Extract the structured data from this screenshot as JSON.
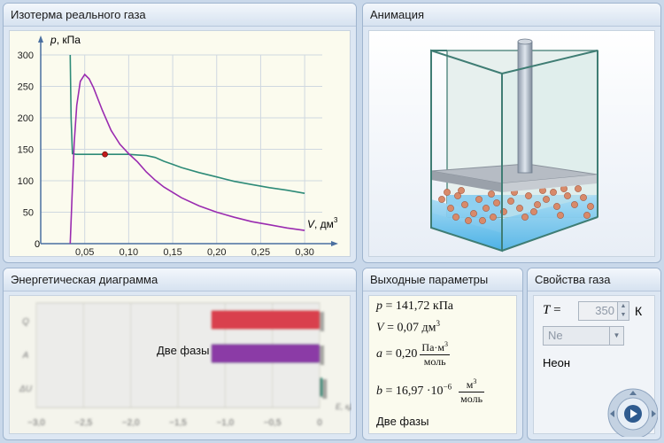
{
  "panels": {
    "isotherm": "Изотерма реального газа",
    "animation": "Анимация",
    "energy": "Энергетическая диаграмма",
    "output": "Выходные параметры",
    "props": "Свойства газа"
  },
  "chart_data": {
    "type": "line",
    "ylabel_var": "p",
    "ylabel_unit": ", кПа",
    "xlabel_var": "V",
    "xlabel_unit": ", дм",
    "xlabel_sup": "3",
    "x_ticks": [
      "0,05",
      "0,10",
      "0,15",
      "0,20",
      "0,25",
      "0,30"
    ],
    "y_ticks": [
      "50",
      "100",
      "150",
      "200",
      "250",
      "300"
    ],
    "origin_label": "0",
    "xlim": [
      0,
      0.32
    ],
    "ylim": [
      0,
      300
    ],
    "series": [
      {
        "color": "#2e8b78",
        "values": [
          [
            0.0335,
            300
          ],
          [
            0.0345,
            200
          ],
          [
            0.036,
            143
          ],
          [
            0.04,
            142
          ],
          [
            0.05,
            142
          ],
          [
            0.06,
            142
          ],
          [
            0.07,
            142
          ],
          [
            0.08,
            142
          ],
          [
            0.09,
            142
          ],
          [
            0.1,
            142
          ],
          [
            0.11,
            141
          ],
          [
            0.12,
            140
          ],
          [
            0.13,
            137
          ],
          [
            0.14,
            131
          ],
          [
            0.15,
            126
          ],
          [
            0.16,
            121
          ],
          [
            0.18,
            113
          ],
          [
            0.2,
            106
          ],
          [
            0.22,
            99
          ],
          [
            0.24,
            94
          ],
          [
            0.26,
            89
          ],
          [
            0.28,
            85
          ],
          [
            0.3,
            80
          ]
        ]
      },
      {
        "color": "#9a2bb0",
        "values": [
          [
            0.0335,
            0
          ],
          [
            0.036,
            90
          ],
          [
            0.038,
            160
          ],
          [
            0.041,
            220
          ],
          [
            0.045,
            258
          ],
          [
            0.05,
            269
          ],
          [
            0.055,
            262
          ],
          [
            0.06,
            248
          ],
          [
            0.07,
            212
          ],
          [
            0.08,
            180
          ],
          [
            0.09,
            158
          ],
          [
            0.1,
            143
          ],
          [
            0.11,
            130
          ],
          [
            0.12,
            114
          ],
          [
            0.13,
            101
          ],
          [
            0.14,
            90
          ],
          [
            0.16,
            73
          ],
          [
            0.18,
            60
          ],
          [
            0.2,
            50
          ],
          [
            0.22,
            42
          ],
          [
            0.24,
            35
          ],
          [
            0.26,
            30
          ],
          [
            0.28,
            25
          ],
          [
            0.3,
            21
          ]
        ]
      }
    ],
    "marker": {
      "x": 0.073,
      "y": 142,
      "color": "#c21a1a"
    }
  },
  "energy": {
    "rows": [
      "Q",
      "A",
      "ΔU"
    ],
    "x_ticks": [
      "−3,0",
      "−2,5",
      "−2,0",
      "−1,5",
      "−1,0",
      "−0,5",
      "0"
    ],
    "axis_label": "E, кДж",
    "values": [
      {
        "row": "Q",
        "start": -1.15,
        "end": 0.0,
        "color": "#d9414e"
      },
      {
        "row": "A",
        "start": -1.15,
        "end": 0.0,
        "color": "#8b3aa6"
      },
      {
        "row": "ΔU",
        "start": 0.0,
        "end": 0.03,
        "color": "#2e8b78"
      }
    ],
    "phase_label": "Две фазы"
  },
  "output": {
    "p_var": "p",
    "p_value": " = 141,72 кПа",
    "v_var": "V",
    "v_value": " = 0,07 дм",
    "v_sup": "3",
    "a_var": "a",
    "a_value": " = 0,20",
    "a_num": "Па·м",
    "a_num_sup": "3",
    "a_den": "моль",
    "b_var": "b",
    "b_value": " = 16,97 ·10",
    "b_exp": "−6",
    "b_num": "м",
    "b_num_sup": "3",
    "b_den": "моль",
    "phase": "Две фазы"
  },
  "props": {
    "t_var": "T",
    "t_eq": " =",
    "t_value": "350",
    "t_unit": "К",
    "gas_selected": "Ne",
    "gas_name": "Неон"
  },
  "icons": {
    "playback": "play-control-icon",
    "spin_up": "▲",
    "spin_down": "▼",
    "dropdown": "▼"
  }
}
